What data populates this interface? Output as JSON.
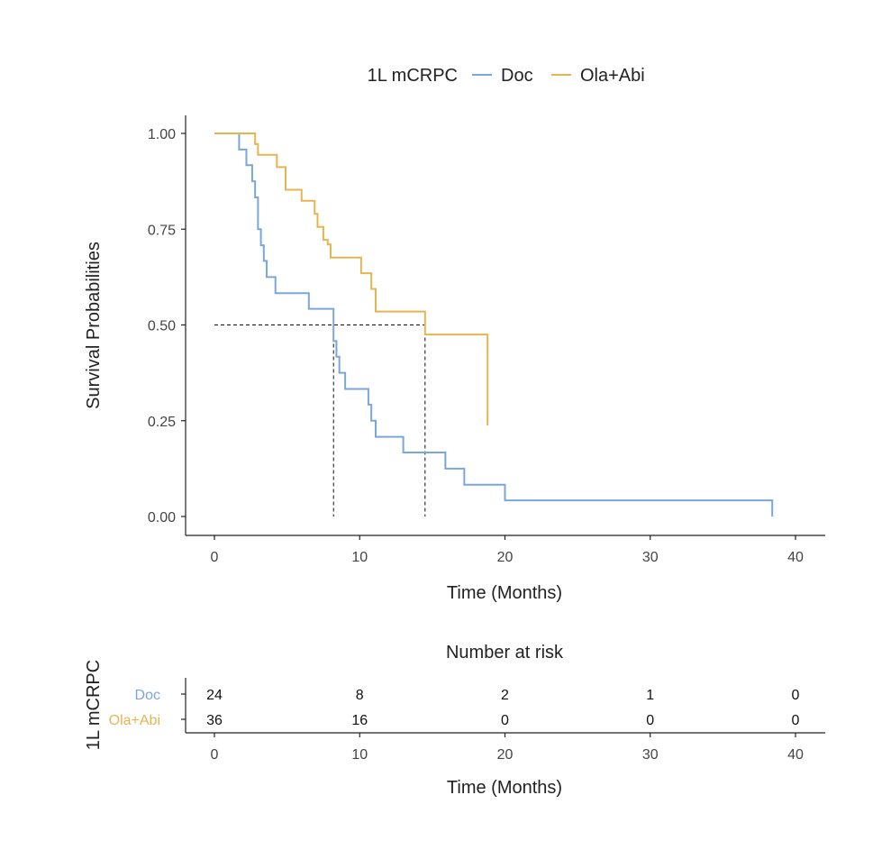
{
  "legend": {
    "title": "1L mCRPC",
    "entries": [
      {
        "label": "Doc",
        "color": "#7aa6dc"
      },
      {
        "label": "Ola+Abi",
        "color": "#e6b552"
      }
    ]
  },
  "chart_data": [
    {
      "type": "line",
      "subtype": "kaplan-meier-step",
      "title": "",
      "xlabel": "Time (Months)",
      "ylabel": "Survival Probabilities",
      "xlim": [
        -2,
        42
      ],
      "ylim": [
        -0.05,
        1.05
      ],
      "xticks": [
        0,
        10,
        20,
        30,
        40
      ],
      "yticks": [
        0,
        0.25,
        0.5,
        0.75,
        1.0
      ],
      "ytick_labels": [
        "0.00",
        "0.25",
        "0.50",
        "0.75",
        "1.00"
      ],
      "legend_position": "top",
      "grid": false,
      "series": [
        {
          "name": "Doc",
          "color": "#7aa6dc",
          "x": [
            0,
            1.7,
            2.2,
            2.6,
            2.8,
            3.0,
            3.2,
            3.4,
            3.6,
            4.2,
            6.5,
            8.2,
            8.4,
            8.6,
            9.0,
            10.6,
            10.8,
            11.1,
            13.0,
            15.9,
            17.2,
            20.0,
            38.4
          ],
          "y": [
            1.0,
            0.958,
            0.917,
            0.875,
            0.833,
            0.75,
            0.708,
            0.667,
            0.625,
            0.583,
            0.542,
            0.458,
            0.417,
            0.375,
            0.333,
            0.292,
            0.25,
            0.208,
            0.167,
            0.125,
            0.083,
            0.042,
            0.0
          ]
        },
        {
          "name": "Ola+Abi",
          "color": "#e6b552",
          "x": [
            0,
            2.8,
            3.0,
            4.3,
            4.9,
            6.0,
            6.9,
            7.1,
            7.5,
            7.8,
            8.0,
            10.1,
            10.8,
            11.1,
            14.5,
            18.8
          ],
          "y": [
            1.0,
            0.972,
            0.944,
            0.912,
            0.853,
            0.824,
            0.79,
            0.756,
            0.722,
            0.71,
            0.676,
            0.635,
            0.594,
            0.535,
            0.475,
            0.238
          ]
        }
      ],
      "median_lines": {
        "style": "dashed",
        "y": 0.5,
        "x_values": [
          8.2,
          14.5
        ]
      }
    },
    {
      "type": "table",
      "title": "Number at risk",
      "xlabel": "Time (Months)",
      "ylabel": "1L mCRPC",
      "xticks": [
        0,
        10,
        20,
        30,
        40
      ],
      "rows": [
        {
          "name": "Doc",
          "color": "#7aa6dc",
          "values": [
            24,
            8,
            2,
            1,
            0
          ]
        },
        {
          "name": "Ola+Abi",
          "color": "#e6b552",
          "values": [
            36,
            16,
            0,
            0,
            0
          ]
        }
      ]
    }
  ]
}
